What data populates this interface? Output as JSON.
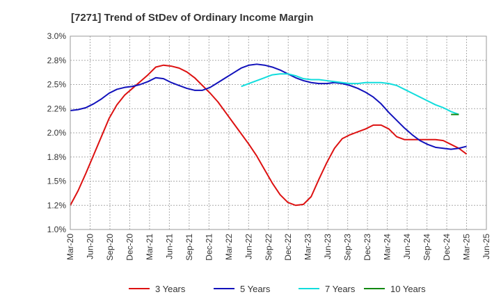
{
  "chart_data": {
    "type": "line",
    "title": "[7271]  Trend of StDev of Ordinary Income Margin",
    "xlabel": "",
    "ylabel": "",
    "x_ticks": [
      "Mar-20",
      "Jun-20",
      "Sep-20",
      "Dec-20",
      "Mar-21",
      "Jun-21",
      "Sep-21",
      "Dec-21",
      "Mar-22",
      "Jun-22",
      "Sep-22",
      "Dec-22",
      "Mar-23",
      "Jun-23",
      "Sep-23",
      "Dec-23",
      "Mar-24",
      "Jun-24",
      "Sep-24",
      "Dec-24",
      "Mar-25",
      "Jun-25"
    ],
    "y_ticks": [
      "1.0%",
      "1.2%",
      "1.5%",
      "1.8%",
      "2.0%",
      "2.2%",
      "2.5%",
      "2.8%",
      "3.0%"
    ],
    "ylim": [
      1.0,
      3.0
    ],
    "grid": true,
    "legend_position": "bottom",
    "series": [
      {
        "name": "3 Years",
        "color": "#dd1111",
        "values": [
          [
            0,
            1.25
          ],
          [
            1,
            1.4
          ],
          [
            2,
            1.58
          ],
          [
            3,
            1.77
          ],
          [
            4,
            1.96
          ],
          [
            5,
            2.15
          ],
          [
            6,
            2.29
          ],
          [
            7,
            2.39
          ],
          [
            8,
            2.46
          ],
          [
            9,
            2.53
          ],
          [
            10,
            2.6
          ],
          [
            11,
            2.68
          ],
          [
            12,
            2.7
          ],
          [
            13,
            2.69
          ],
          [
            14,
            2.67
          ],
          [
            15,
            2.63
          ],
          [
            16,
            2.57
          ],
          [
            17,
            2.49
          ],
          [
            18,
            2.41
          ],
          [
            19,
            2.32
          ],
          [
            20,
            2.21
          ],
          [
            21,
            2.1
          ],
          [
            22,
            1.99
          ],
          [
            23,
            1.88
          ],
          [
            24,
            1.76
          ],
          [
            25,
            1.62
          ],
          [
            26,
            1.48
          ],
          [
            27,
            1.36
          ],
          [
            28,
            1.28
          ],
          [
            29,
            1.25
          ],
          [
            30,
            1.26
          ],
          [
            31,
            1.34
          ],
          [
            32,
            1.52
          ],
          [
            33,
            1.69
          ],
          [
            34,
            1.84
          ],
          [
            35,
            1.94
          ],
          [
            36,
            1.98
          ],
          [
            37,
            2.01
          ],
          [
            38,
            2.04
          ],
          [
            39,
            2.08
          ],
          [
            40,
            2.08
          ],
          [
            41,
            2.04
          ],
          [
            42,
            1.96
          ],
          [
            43,
            1.93
          ],
          [
            44,
            1.93
          ],
          [
            45,
            1.93
          ],
          [
            46,
            1.93
          ],
          [
            47,
            1.93
          ],
          [
            48,
            1.92
          ],
          [
            49,
            1.88
          ],
          [
            50,
            1.84
          ],
          [
            51,
            1.78
          ]
        ]
      },
      {
        "name": "5 Years",
        "color": "#1111bb",
        "values": [
          [
            0,
            2.23
          ],
          [
            1,
            2.24
          ],
          [
            2,
            2.26
          ],
          [
            3,
            2.3
          ],
          [
            4,
            2.35
          ],
          [
            5,
            2.41
          ],
          [
            6,
            2.45
          ],
          [
            7,
            2.47
          ],
          [
            8,
            2.48
          ],
          [
            9,
            2.5
          ],
          [
            10,
            2.53
          ],
          [
            11,
            2.57
          ],
          [
            12,
            2.56
          ],
          [
            13,
            2.52
          ],
          [
            14,
            2.49
          ],
          [
            15,
            2.46
          ],
          [
            16,
            2.44
          ],
          [
            17,
            2.44
          ],
          [
            18,
            2.47
          ],
          [
            19,
            2.52
          ],
          [
            20,
            2.57
          ],
          [
            21,
            2.62
          ],
          [
            22,
            2.67
          ],
          [
            23,
            2.7
          ],
          [
            24,
            2.71
          ],
          [
            25,
            2.7
          ],
          [
            26,
            2.68
          ],
          [
            27,
            2.65
          ],
          [
            28,
            2.61
          ],
          [
            29,
            2.57
          ],
          [
            30,
            2.54
          ],
          [
            31,
            2.52
          ],
          [
            32,
            2.51
          ],
          [
            33,
            2.51
          ],
          [
            34,
            2.52
          ],
          [
            35,
            2.51
          ],
          [
            36,
            2.49
          ],
          [
            37,
            2.46
          ],
          [
            38,
            2.42
          ],
          [
            39,
            2.37
          ],
          [
            40,
            2.3
          ],
          [
            41,
            2.21
          ],
          [
            42,
            2.13
          ],
          [
            43,
            2.05
          ],
          [
            44,
            1.98
          ],
          [
            45,
            1.92
          ],
          [
            46,
            1.88
          ],
          [
            47,
            1.85
          ],
          [
            48,
            1.84
          ],
          [
            49,
            1.83
          ],
          [
            50,
            1.84
          ],
          [
            51,
            1.86
          ]
        ]
      },
      {
        "name": "7 Years",
        "color": "#11dddd",
        "values": [
          [
            22,
            2.48
          ],
          [
            23,
            2.51
          ],
          [
            24,
            2.54
          ],
          [
            25,
            2.57
          ],
          [
            26,
            2.6
          ],
          [
            27,
            2.61
          ],
          [
            28,
            2.61
          ],
          [
            29,
            2.59
          ],
          [
            30,
            2.56
          ],
          [
            31,
            2.55
          ],
          [
            32,
            2.55
          ],
          [
            33,
            2.54
          ],
          [
            34,
            2.53
          ],
          [
            35,
            2.52
          ],
          [
            36,
            2.51
          ],
          [
            37,
            2.51
          ],
          [
            38,
            2.52
          ],
          [
            39,
            2.52
          ],
          [
            40,
            2.52
          ],
          [
            41,
            2.51
          ],
          [
            42,
            2.49
          ],
          [
            43,
            2.45
          ],
          [
            44,
            2.41
          ],
          [
            45,
            2.37
          ],
          [
            46,
            2.33
          ],
          [
            47,
            2.29
          ],
          [
            48,
            2.26
          ],
          [
            49,
            2.22
          ],
          [
            50,
            2.19
          ]
        ]
      },
      {
        "name": "10 Years",
        "color": "#118811",
        "values": [
          [
            49,
            2.19
          ],
          [
            50,
            2.19
          ]
        ]
      }
    ]
  }
}
